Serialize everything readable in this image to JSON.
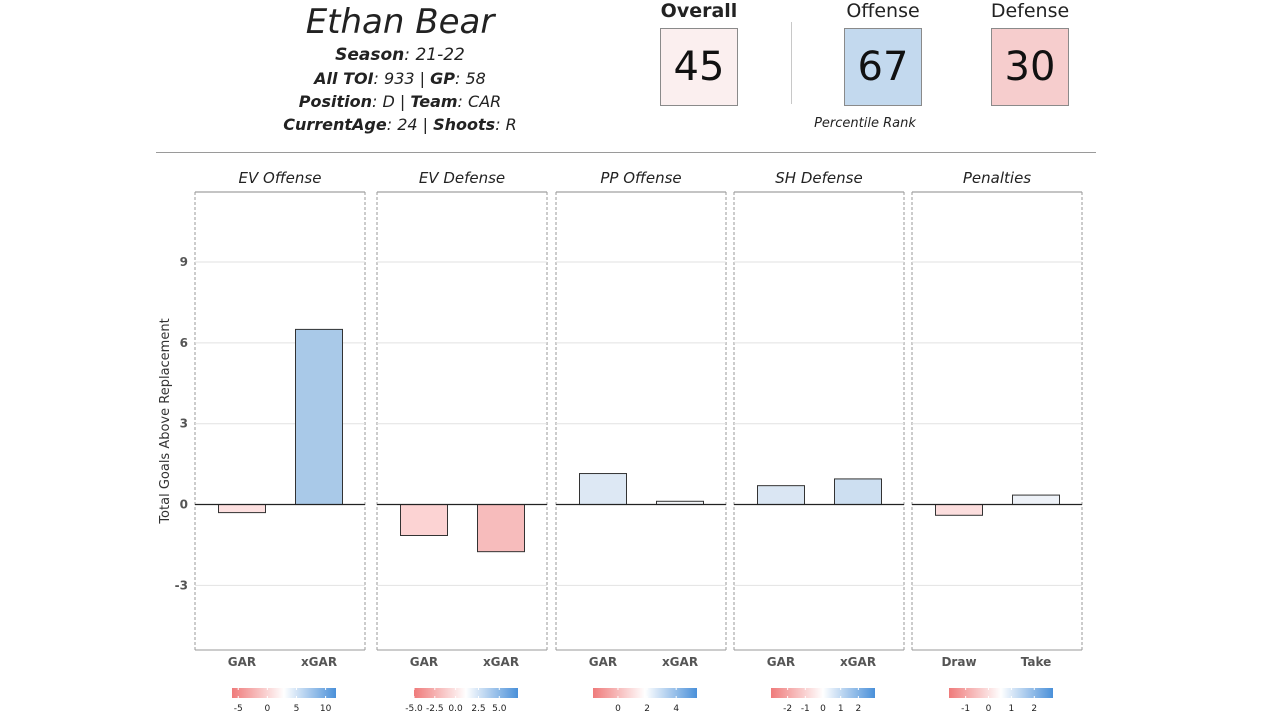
{
  "player": {
    "name": "Ethan Bear",
    "season_label": "Season",
    "season": "21-22",
    "toi_label": "All TOI",
    "toi": "933",
    "gp_label": "GP",
    "gp": "58",
    "position_label": "Position",
    "position": "D",
    "team_label": "Team",
    "team": "CAR",
    "age_label": "CurrentAge",
    "age": "24",
    "shoots_label": "Shoots",
    "shoots": "R"
  },
  "scores": {
    "overall": {
      "label": "Overall",
      "value": "45",
      "color": "#fbefef"
    },
    "offense": {
      "label": "Offense",
      "value": "67",
      "color": "#c3d9ee"
    },
    "defense": {
      "label": "Defense",
      "value": "30",
      "color": "#f6cdcd"
    },
    "caption": "Percentile Rank"
  },
  "colors": {
    "negative": "#ef7b7b",
    "neutral": "#ffffff",
    "positive": "#4a90d9"
  },
  "chart_data": {
    "type": "bar",
    "ylabel": "Total Goals Above Replacement",
    "ylim": [
      -5.4,
      11.6
    ],
    "yticks": [
      -3,
      0,
      3,
      6,
      9
    ],
    "grid": true,
    "panels": [
      {
        "title": "EV Offense",
        "categories": [
          "GAR",
          "xGAR"
        ],
        "values": [
          -0.3,
          6.5
        ],
        "colors": [
          "#fde0e0",
          "#a9c9e8"
        ],
        "legend": {
          "ticks": [
            "-5",
            "0",
            "5",
            "10"
          ],
          "positions": [
            0.06,
            0.34,
            0.62,
            0.9
          ]
        }
      },
      {
        "title": "EV Defense",
        "categories": [
          "GAR",
          "xGAR"
        ],
        "values": [
          -1.15,
          -1.75
        ],
        "colors": [
          "#fcd3d3",
          "#f7bcbc"
        ],
        "legend": {
          "ticks": [
            "-5.0",
            "-2.5",
            "0.0",
            "2.5",
            "5.0"
          ],
          "positions": [
            0.0,
            0.2,
            0.4,
            0.62,
            0.82
          ]
        }
      },
      {
        "title": "PP Offense",
        "categories": [
          "GAR",
          "xGAR"
        ],
        "values": [
          1.15,
          0.12
        ],
        "colors": [
          "#dde8f4",
          "#f3f5f8"
        ],
        "legend": {
          "ticks": [
            "0",
            "2",
            "4"
          ],
          "positions": [
            0.24,
            0.52,
            0.8
          ]
        }
      },
      {
        "title": "SH Defense",
        "categories": [
          "GAR",
          "xGAR"
        ],
        "values": [
          0.7,
          0.95
        ],
        "colors": [
          "#dae6f3",
          "#cddff1"
        ],
        "legend": {
          "ticks": [
            "-2",
            "-1",
            "0",
            "1",
            "2"
          ],
          "positions": [
            0.16,
            0.33,
            0.5,
            0.67,
            0.84
          ]
        }
      },
      {
        "title": "Penalties",
        "categories": [
          "Draw",
          "Take"
        ],
        "values": [
          -0.4,
          0.35
        ],
        "colors": [
          "#fcdede",
          "#eef2f8"
        ],
        "legend": {
          "ticks": [
            "-1",
            "0",
            "1",
            "2"
          ],
          "positions": [
            0.16,
            0.38,
            0.6,
            0.82
          ]
        }
      }
    ]
  }
}
